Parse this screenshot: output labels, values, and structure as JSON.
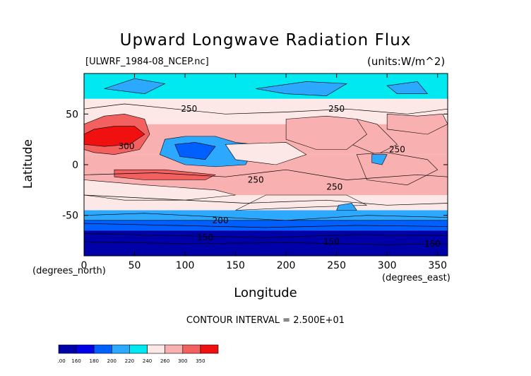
{
  "chart_data": {
    "type": "heatmap",
    "title": "Upward Longwave Radiation Flux",
    "subtitle_left": "[ULWRF_1984-08_NCEP.nc]",
    "subtitle_right": "(units:W/m^2)",
    "xlabel": "Longitude",
    "ylabel": "Latitude",
    "x_unit_note": "(degrees_east)",
    "y_unit_note": "(degrees_north)",
    "xlim": [
      0,
      360
    ],
    "ylim": [
      -90,
      90
    ],
    "x_ticks": [
      "0",
      "50",
      "100",
      "150",
      "200",
      "250",
      "300",
      "350"
    ],
    "y_ticks": [
      "50",
      "0",
      "-50"
    ],
    "contour_interval_text": "CONTOUR INTERVAL = 2.500E+01",
    "contour_labels": [
      "250",
      "300",
      "250",
      "250",
      "250",
      "250",
      "200",
      "150",
      "150",
      "150"
    ],
    "colorbar": {
      "levels": [
        "100",
        "160",
        "180",
        "200",
        "220",
        "240",
        "260",
        "300",
        "350"
      ],
      "colors": [
        "#0000a8",
        "#0000e8",
        "#0060ff",
        "#2ca8ff",
        "#00e8f0",
        "#fde8e8",
        "#f8b0b0",
        "#f26060",
        "#f01010"
      ]
    },
    "bands": [
      {
        "lat_from": 90,
        "lat_to": 65,
        "value": 235
      },
      {
        "lat_from": 65,
        "lat_to": 40,
        "value": 240
      },
      {
        "lat_from": 40,
        "lat_to": 10,
        "value": 270
      },
      {
        "lat_from": 10,
        "lat_to": -30,
        "value": 275
      },
      {
        "lat_from": -30,
        "lat_to": -45,
        "value": 245
      },
      {
        "lat_from": -45,
        "lat_to": -55,
        "value": 210
      },
      {
        "lat_from": -55,
        "lat_to": -65,
        "value": 190
      },
      {
        "lat_from": -65,
        "lat_to": -90,
        "value": 140
      }
    ]
  }
}
